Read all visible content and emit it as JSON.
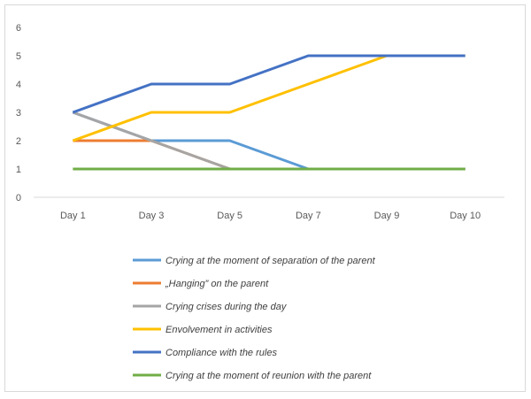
{
  "chart_data": {
    "type": "line",
    "title": "",
    "xlabel": "",
    "ylabel": "",
    "categories": [
      "Day 1",
      "Day 3",
      "Day 5",
      "Day 7",
      "Day 9",
      "Day 10"
    ],
    "ylim": [
      0,
      6
    ],
    "yticks": [
      "0",
      "1",
      "2",
      "3",
      "4",
      "5",
      "6"
    ],
    "grid": false,
    "legend_position": "bottom",
    "series": [
      {
        "name": "Crying at the moment of separation of the parent",
        "color": "#5b9bd5",
        "values": [
          3,
          2,
          2,
          1,
          1,
          1
        ]
      },
      {
        "name": "„Hanging” on the parent",
        "color": "#ed7d31",
        "values": [
          2,
          2,
          1,
          1,
          1,
          1
        ]
      },
      {
        "name": "Crying crises during the day",
        "color": "#a5a5a5",
        "values": [
          3,
          2,
          1,
          1,
          1,
          1
        ]
      },
      {
        "name": "Envolvement in activities",
        "color": "#ffc000",
        "values": [
          2,
          3,
          3,
          4,
          5,
          5
        ]
      },
      {
        "name": "Compliance with the rules",
        "color": "#4472c4",
        "values": [
          3,
          4,
          4,
          5,
          5,
          5
        ]
      },
      {
        "name": "Crying at the moment of reunion with the parent",
        "color": "#70ad47",
        "values": [
          1,
          1,
          1,
          1,
          1,
          1
        ]
      }
    ]
  }
}
